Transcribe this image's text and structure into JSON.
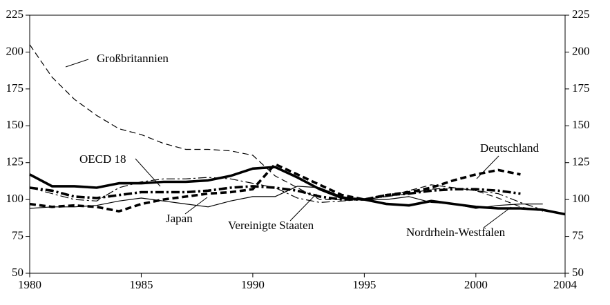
{
  "chart_data": {
    "type": "line",
    "x": [
      1980,
      1981,
      1982,
      1983,
      1984,
      1985,
      1986,
      1987,
      1988,
      1989,
      1990,
      1991,
      1992,
      1993,
      1994,
      1995,
      1996,
      1997,
      1998,
      1999,
      2000,
      2001,
      2002,
      2003,
      2004
    ],
    "series": [
      {
        "name": "Großbritannien",
        "color": "#000000",
        "width": "thin",
        "dash": "dashed",
        "values": [
          205,
          183,
          168,
          157,
          148,
          144,
          138,
          134,
          134,
          133,
          130,
          116,
          108,
          100,
          100,
          100,
          102,
          106,
          110,
          108,
          106,
          101,
          95,
          92,
          null
        ]
      },
      {
        "name": "OECD 18",
        "color": "#000000",
        "width": "thick",
        "dash": "dashdot",
        "values": [
          108,
          106,
          102,
          101,
          103,
          105,
          105,
          105,
          106,
          108,
          109,
          108,
          106,
          102,
          100,
          100,
          103,
          104,
          106,
          107,
          107,
          106,
          104,
          null,
          null
        ]
      },
      {
        "name": "Japan",
        "color": "#000000",
        "width": "thin",
        "dash": "solid",
        "values": [
          94,
          95,
          95,
          96,
          99,
          101,
          99,
          97,
          95,
          99,
          102,
          102,
          109,
          108,
          102,
          100,
          100,
          102,
          98,
          97,
          94,
          96,
          97,
          97,
          null
        ]
      },
      {
        "name": "Vereinigte Staaten",
        "color": "#000000",
        "width": "thin",
        "dash": "dashdot",
        "values": [
          108,
          104,
          100,
          99,
          108,
          112,
          114,
          114,
          115,
          114,
          111,
          108,
          101,
          98,
          99,
          100,
          102,
          104,
          107,
          108,
          106,
          104,
          98,
          93,
          null
        ]
      },
      {
        "name": "Deutschland",
        "color": "#000000",
        "width": "thick",
        "dash": "dashed",
        "values": [
          97,
          95,
          96,
          95,
          92,
          97,
          100,
          102,
          104,
          105,
          107,
          124,
          117,
          110,
          103,
          100,
          103,
          105,
          108,
          113,
          117,
          120,
          117,
          null,
          null
        ]
      },
      {
        "name": "Nordrhein-Westfalen",
        "color": "#000000",
        "width": "thick",
        "dash": "solid",
        "values": [
          117,
          109,
          109,
          108,
          111,
          111,
          112,
          112,
          113,
          116,
          121,
          122,
          115,
          107,
          101,
          100,
          97,
          96,
          99,
          97,
          95,
          94,
          94,
          93,
          90
        ]
      }
    ],
    "xlim": [
      1980,
      2004
    ],
    "xticks": [
      1980,
      1985,
      1990,
      1995,
      2000,
      2004
    ],
    "ylim": [
      50,
      225
    ],
    "yticks": [
      50,
      75,
      100,
      125,
      150,
      175,
      200,
      225
    ],
    "y2lim": [
      50,
      225
    ],
    "y2ticks": [
      50,
      75,
      100,
      125,
      150,
      175,
      200,
      225
    ]
  }
}
